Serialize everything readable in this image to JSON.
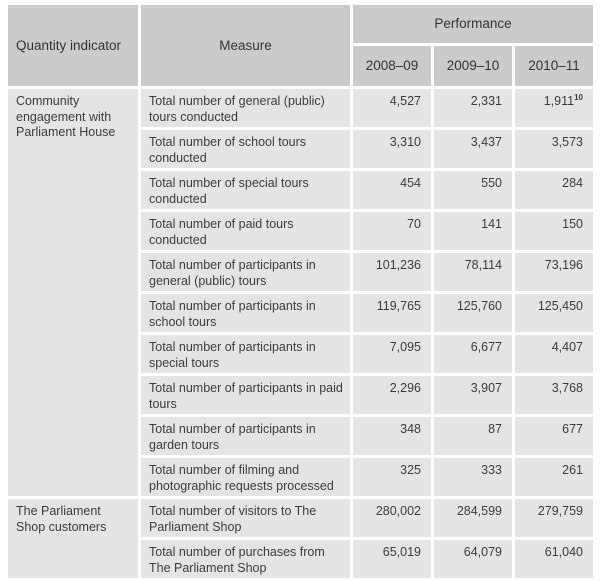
{
  "colors": {
    "header_bg": "#cbcbcb",
    "cell_bg": "#e4e4e4",
    "gap": "#ffffff",
    "text": "#3c3c3c"
  },
  "table": {
    "headers": {
      "quantity_indicator": "Quantity indicator",
      "measure": "Measure",
      "performance": "Performance",
      "years": [
        "2008–09",
        "2009–10",
        "2010–11"
      ]
    },
    "footnote_marker": "10",
    "groups": [
      {
        "label": "Community engagement with Parliament House",
        "rowspan": 10
      },
      {
        "label": "The Parliament Shop customers",
        "rowspan": 2
      }
    ],
    "rows": [
      {
        "measure": "Total number of general (public) tours conducted",
        "values": [
          "4,527",
          "2,331",
          "1,911"
        ]
      },
      {
        "measure": "Total number of school tours conducted",
        "values": [
          "3,310",
          "3,437",
          "3,573"
        ]
      },
      {
        "measure": "Total number of special tours conducted",
        "values": [
          "454",
          "550",
          "284"
        ]
      },
      {
        "measure": "Total number of paid tours conducted",
        "values": [
          "70",
          "141",
          "150"
        ]
      },
      {
        "measure": "Total number of participants in general (public) tours",
        "values": [
          "101,236",
          "78,114",
          "73,196"
        ]
      },
      {
        "measure": "Total number of participants in school tours",
        "values": [
          "119,765",
          "125,760",
          "125,450"
        ]
      },
      {
        "measure": "Total number of participants in special tours",
        "values": [
          "7,095",
          "6,677",
          "4,407"
        ]
      },
      {
        "measure": "Total number of participants in paid tours",
        "values": [
          "2,296",
          "3,907",
          "3,768"
        ]
      },
      {
        "measure": "Total number of participants in garden tours",
        "values": [
          "348",
          "87",
          "677"
        ]
      },
      {
        "measure": "Total number of filming and photographic requests processed",
        "values": [
          "325",
          "333",
          "261"
        ]
      },
      {
        "measure": "Total number of visitors to The Parliament Shop",
        "values": [
          "280,002",
          "284,599",
          "279,759"
        ]
      },
      {
        "measure": "Total number of purchases from The Parliament Shop",
        "values": [
          "65,019",
          "64,079",
          "61,040"
        ]
      }
    ]
  }
}
